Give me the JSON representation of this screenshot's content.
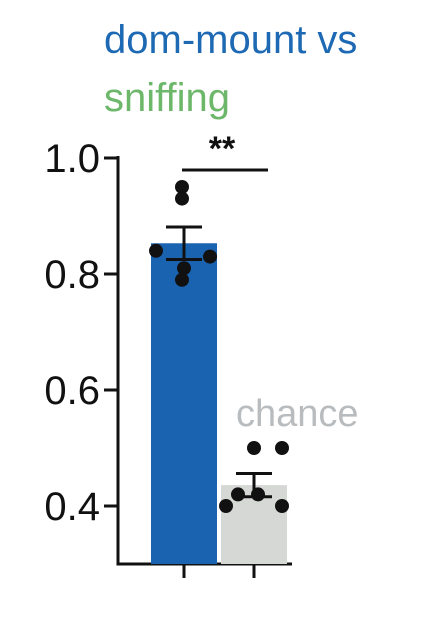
{
  "title": {
    "line1": "dom-mount vs",
    "line2": "sniffing",
    "line1_color": "#1d69b3",
    "line2_color": "#6db76a"
  },
  "chart_data": {
    "type": "bar",
    "categories": [
      "",
      ""
    ],
    "values": [
      0.853,
      0.436
    ],
    "errors": [
      0.028,
      0.02
    ],
    "bar_colors": [
      "#1a63b0",
      "#d6d8d6"
    ],
    "ylim": [
      0.3,
      1.0
    ],
    "yticks": [
      0.4,
      0.6,
      0.8,
      1.0
    ],
    "ytick_labels": [
      "0.4",
      "0.6",
      "0.8",
      "1.0"
    ],
    "xlabel": "",
    "ylabel": "",
    "points": [
      [
        0.95,
        0.93,
        0.84,
        0.83,
        0.81,
        0.79
      ],
      [
        0.5,
        0.5,
        0.42,
        0.42,
        0.4,
        0.4
      ]
    ],
    "point_color": "#111111",
    "annotations": {
      "significance": "**",
      "chance_label": "chance",
      "chance_color": "#b9bcbe"
    },
    "grid": false
  }
}
